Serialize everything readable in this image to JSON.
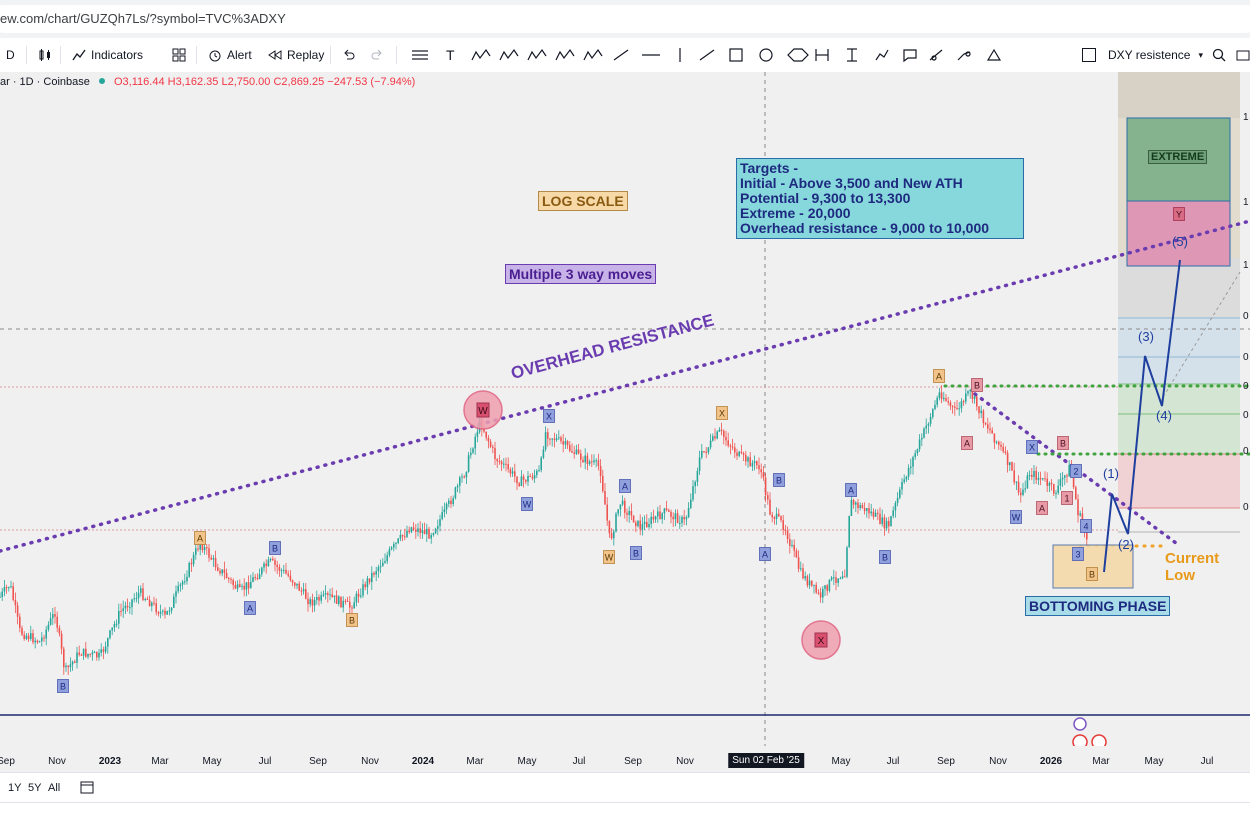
{
  "browser": {
    "url": "ew.com/chart/GUZQh7Ls/?symbol=TVC%3ADXY"
  },
  "toolbar": {
    "interval": "D",
    "indicators_label": "Indicators",
    "alert_label": "Alert",
    "replay_label": "Replay",
    "layout_name": "DXY resistence"
  },
  "legend": {
    "symbol": "ar · 1D · Coinbase",
    "open": "O3,116.44",
    "high": "H3,162.35",
    "low": "L2,750.00",
    "close": "C2,869.25",
    "change": "−247.53 (−7.94%)"
  },
  "bottom": {
    "ranges": [
      "1Y",
      "5Y",
      "All"
    ]
  },
  "chart_data": {
    "type": "line",
    "scale": "log",
    "x_ticks": [
      "Sep",
      "Nov",
      "2023",
      "Mar",
      "May",
      "Jul",
      "Sep",
      "Nov",
      "2024",
      "Mar",
      "May",
      "Jul",
      "Sep",
      "Nov",
      "Sun 02 Feb '25",
      "May",
      "Jul",
      "Sep",
      "Nov",
      "2026",
      "Mar",
      "May",
      "Jul"
    ],
    "crosshair_date": "Sun 02 Feb '25",
    "annotations": {
      "log_scale": "LOG SCALE",
      "multiple_moves": "Multiple 3 way moves",
      "overhead": "OVERHEAD RESISTANCE",
      "bottoming": "BOTTOMING PHASE",
      "current_low": "Current Low",
      "extreme_box": "EXTREME",
      "targets": [
        "Targets -",
        "Initial - Above 3,500 and New ATH",
        "Potential - 9,300 to 13,300",
        "Extreme - 20,000",
        "Overhead resistance - 9,000 to 10,000"
      ]
    },
    "wave_labels": [
      "W",
      "X",
      "Y",
      "A",
      "B",
      "(1)",
      "(2)",
      "(3)",
      "(4)",
      "(5)",
      "1",
      "2",
      "3",
      "4"
    ],
    "price_axis_fragments": [
      "1",
      "1",
      "1",
      "0",
      "0",
      "0",
      "0",
      "0",
      "0"
    ],
    "colors": {
      "up": "#26a69a",
      "down": "#ef5350",
      "resistance": "#6a3cb0",
      "projection": "#1e3f9e",
      "current_low": "#f0a020"
    }
  }
}
